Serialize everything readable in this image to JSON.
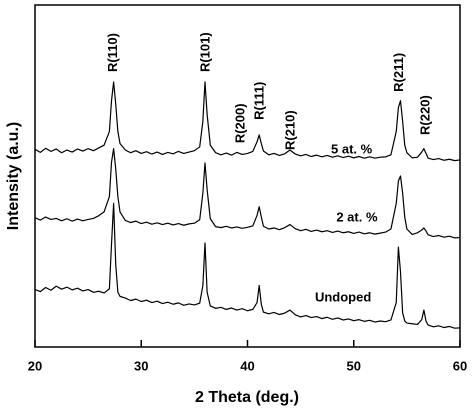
{
  "chart_data": {
    "type": "line",
    "x_label": "2 Theta (deg.)",
    "y_label": "Intensity (a.u.)",
    "xlim": [
      20,
      60
    ],
    "xticks": [
      20,
      30,
      40,
      50,
      60
    ],
    "ylim": [
      0,
      100
    ],
    "x": [
      20,
      20.5,
      21,
      21.5,
      22,
      22.5,
      23,
      23.5,
      24,
      24.5,
      25,
      25.5,
      26,
      26.5,
      27,
      27.2,
      27.4,
      27.6,
      27.8,
      28,
      28.5,
      29,
      29.5,
      30,
      30.5,
      31,
      31.5,
      32,
      32.5,
      33,
      33.5,
      34,
      34.5,
      35,
      35.5,
      35.8,
      36,
      36.2,
      36.5,
      37,
      37.5,
      38,
      38.5,
      39,
      39.5,
      40,
      40.5,
      40.9,
      41.1,
      41.3,
      41.5,
      42,
      42.5,
      43,
      43.5,
      44,
      44.5,
      45,
      45.5,
      46,
      46.5,
      47,
      47.5,
      48,
      48.5,
      49,
      49.5,
      50,
      50.5,
      51,
      51.5,
      52,
      52.5,
      53,
      53.5,
      54,
      54.2,
      54.4,
      54.6,
      54.8,
      55,
      55.5,
      56,
      56.4,
      56.6,
      56.8,
      57,
      57.5,
      58,
      58.5,
      59,
      59.5,
      60
    ],
    "series": [
      {
        "name": "5 at. %",
        "color": "#000000",
        "label_at": [
          49.8,
          57.6
        ],
        "values": [
          57.8,
          56.9,
          58.1,
          57.2,
          57.9,
          56.8,
          57.6,
          57.0,
          57.9,
          57.3,
          58.0,
          57.4,
          58.2,
          59.0,
          63,
          72,
          77.5,
          71,
          63,
          59.5,
          57.6,
          56.8,
          57.4,
          56.6,
          57.1,
          56.4,
          57.0,
          56.3,
          56.9,
          56.5,
          57.2,
          56.6,
          57.0,
          57.4,
          58.5,
          66,
          77.5,
          68,
          59,
          56.8,
          56.2,
          56.7,
          56.1,
          56.9,
          56.3,
          56.6,
          57.2,
          60,
          62,
          59.5,
          57.3,
          56.2,
          56.6,
          56.0,
          56.5,
          57.6,
          56.4,
          55.9,
          56.3,
          55.7,
          56.1,
          55.6,
          56.0,
          55.5,
          55.9,
          55.4,
          55.8,
          55.3,
          55.7,
          55.2,
          55.6,
          55.2,
          55.5,
          55.6,
          56.2,
          63,
          70,
          72,
          66,
          59,
          56.8,
          55.3,
          55.5,
          57,
          58,
          56.6,
          55.2,
          54.8,
          55.1,
          54.6,
          54.9,
          54.5,
          54.7
        ]
      },
      {
        "name": "2 at. %",
        "color": "#000000",
        "label_at": [
          50.3,
          37.7
        ],
        "values": [
          37.8,
          37.1,
          38.0,
          37.3,
          37.6,
          36.9,
          37.5,
          36.8,
          37.4,
          36.9,
          37.3,
          37.6,
          38.4,
          39.5,
          44,
          54,
          58,
          52,
          44,
          39.5,
          37.0,
          36.4,
          36.8,
          36.1,
          36.5,
          35.9,
          36.3,
          35.8,
          36.2,
          35.7,
          36.1,
          35.6,
          36.0,
          36.2,
          37.2,
          45,
          53.8,
          46,
          37.5,
          35.2,
          34.9,
          35.3,
          34.8,
          35.1,
          34.7,
          35.0,
          35.4,
          38.5,
          41,
          38,
          35.3,
          34.5,
          34.8,
          34.3,
          34.9,
          35.8,
          34.6,
          34.0,
          34.4,
          33.8,
          34.2,
          33.7,
          34.0,
          33.5,
          33.9,
          33.4,
          33.7,
          33.2,
          33.6,
          33.1,
          33.4,
          33.0,
          33.3,
          33.6,
          34.5,
          42,
          48.5,
          50,
          45,
          38,
          34.5,
          32.9,
          33.4,
          34.2,
          34.8,
          33.9,
          32.8,
          32.3,
          32.6,
          32.1,
          32.4,
          31.9,
          32.0
        ]
      },
      {
        "name": "Undoped",
        "color": "#000000",
        "label_at": [
          49.0,
          14.3
        ],
        "values": [
          16.8,
          16.2,
          17.4,
          16.6,
          17.8,
          16.9,
          17.5,
          16.7,
          17.2,
          16.4,
          16.8,
          16.0,
          16.3,
          15.8,
          17,
          30,
          42,
          24,
          16,
          14.8,
          14.3,
          13.6,
          14.0,
          13.3,
          13.7,
          13.0,
          13.4,
          12.7,
          13.1,
          12.5,
          12.9,
          12.2,
          12.6,
          12.3,
          12.8,
          18,
          30.4,
          16,
          12.0,
          11.3,
          11.6,
          11.0,
          11.4,
          10.8,
          11.2,
          10.6,
          11.0,
          13,
          18,
          12.5,
          10.2,
          9.7,
          10.1,
          9.5,
          9.9,
          10.8,
          9.4,
          8.8,
          9.2,
          8.6,
          8.9,
          8.3,
          8.7,
          8.1,
          8.5,
          7.9,
          8.2,
          7.7,
          8.0,
          7.5,
          7.8,
          7.3,
          7.6,
          7.4,
          7.9,
          13,
          29.2,
          22,
          10,
          7.6,
          7.0,
          6.8,
          6.6,
          8,
          10.8,
          7.6,
          6.4,
          5.9,
          6.2,
          5.7,
          6.0,
          5.5,
          5.6
        ]
      }
    ],
    "annotations": [
      {
        "text": "R(110)",
        "x": 27.4,
        "y": 80.4
      },
      {
        "text": "R(101)",
        "x": 36.1,
        "y": 80.4
      },
      {
        "text": "R(200)",
        "x": 39.4,
        "y": 59.6
      },
      {
        "text": "R(111)",
        "x": 41.2,
        "y": 66.4
      },
      {
        "text": "R(210)",
        "x": 44.1,
        "y": 57.6
      },
      {
        "text": "R(211)",
        "x": 54.3,
        "y": 74.6
      },
      {
        "text": "R(220)",
        "x": 56.8,
        "y": 62.0
      }
    ]
  }
}
